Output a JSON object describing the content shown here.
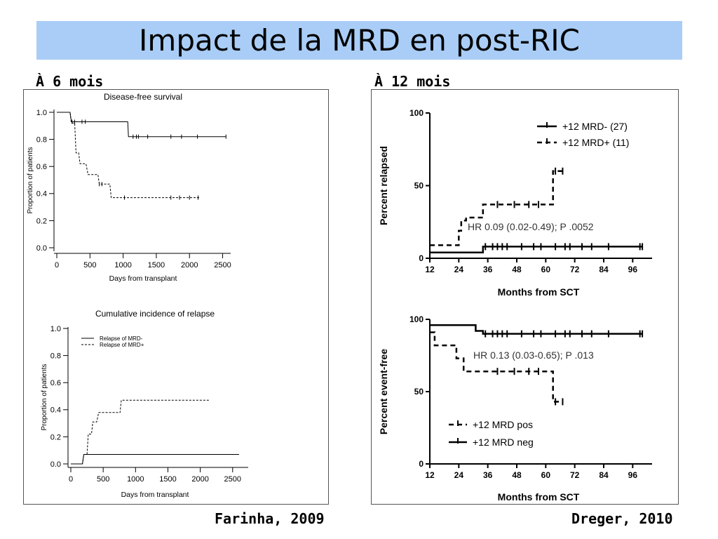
{
  "slide": {
    "title": "Impact de la MRD en post-RIC",
    "left_heading": "À 6 mois",
    "right_heading": "À 12 mois",
    "left_citation": "Farinha, 2009",
    "right_citation": "Dreger, 2010"
  },
  "chart_data": [
    {
      "type": "line",
      "step": true,
      "title": "Disease-free survival",
      "xlabel": "Days from transplant",
      "ylabel": "Proportion of patients",
      "xlim": [
        0,
        2600
      ],
      "ylim": [
        0,
        1.0
      ],
      "xticks": [
        "0",
        "500",
        "1000",
        "1500",
        "2000",
        "2500"
      ],
      "yticks": [
        "0.0",
        "0.2",
        "0.4",
        "0.6",
        "0.8",
        "1.0"
      ],
      "series": [
        {
          "style": "solid",
          "x": [
            0,
            200,
            220,
            1070,
            1080,
            2550
          ],
          "y": [
            1.0,
            1.0,
            0.93,
            0.93,
            0.82,
            0.82
          ],
          "censor_x": [
            230,
            270,
            380,
            430,
            1150,
            1200,
            1230,
            1370,
            1720,
            1880,
            2120,
            2550
          ]
        },
        {
          "style": "dashed",
          "x": [
            0,
            200,
            220,
            270,
            290,
            330,
            350,
            440,
            470,
            620,
            640,
            800,
            820,
            2150
          ],
          "y": [
            1.0,
            1.0,
            0.92,
            0.92,
            0.7,
            0.7,
            0.62,
            0.62,
            0.54,
            0.54,
            0.47,
            0.47,
            0.37,
            0.37
          ],
          "censor_x": [
            640,
            680,
            1020,
            1720,
            1850,
            2000,
            2130
          ]
        }
      ]
    },
    {
      "type": "line",
      "step": true,
      "title": "Cumulative incidence of relapse",
      "xlabel": "Days from transplant",
      "ylabel": "Proportion of patients",
      "xlim": [
        0,
        2600
      ],
      "ylim": [
        0,
        1.0
      ],
      "xticks": [
        "0",
        "500",
        "1000",
        "1500",
        "2000",
        "2500"
      ],
      "yticks": [
        "0.0",
        "0.2",
        "0.4",
        "0.6",
        "0.8",
        "1.0"
      ],
      "legend": [
        "Relapse of MRD-",
        "Relapse of MRD+"
      ],
      "legend_position": "top-left",
      "series": [
        {
          "name": "Relapse of MRD-",
          "style": "solid",
          "x": [
            0,
            180,
            200,
            2600
          ],
          "y": [
            0,
            0,
            0.07,
            0.07
          ]
        },
        {
          "name": "Relapse of MRD+",
          "style": "dashed",
          "x": [
            0,
            180,
            200,
            250,
            270,
            320,
            340,
            400,
            430,
            760,
            780,
            2150
          ],
          "y": [
            0,
            0,
            0.07,
            0.07,
            0.22,
            0.22,
            0.31,
            0.31,
            0.38,
            0.38,
            0.47,
            0.47
          ]
        }
      ]
    },
    {
      "type": "line",
      "step": true,
      "xlabel": "Months from SCT",
      "ylabel": "Percent relapsed",
      "xlim": [
        12,
        102
      ],
      "ylim": [
        0,
        100
      ],
      "xticks": [
        "12",
        "24",
        "36",
        "48",
        "60",
        "72",
        "84",
        "96"
      ],
      "yticks": [
        "0",
        "50",
        "100"
      ],
      "legend": [
        "+12 MRD- (27)",
        "+12 MRD+ (11)"
      ],
      "legend_position": "top-right",
      "annotation": "HR 0.09 (0.02-0.49); P  .0052",
      "series": [
        {
          "name": "+12 MRD- (27)",
          "style": "solid",
          "x": [
            12,
            34,
            34,
            100
          ],
          "y": [
            4,
            4,
            8,
            8
          ],
          "censor_x": [
            35,
            38,
            40,
            42,
            44,
            50,
            55,
            58,
            64,
            68,
            70,
            75,
            79,
            86,
            99,
            100
          ]
        },
        {
          "name": "+12 MRD+ (11)",
          "style": "dashed",
          "x": [
            12,
            24,
            24,
            25,
            25,
            27,
            27,
            34,
            34,
            63,
            63,
            67
          ],
          "y": [
            9,
            9,
            19,
            19,
            26,
            26,
            28,
            28,
            37,
            37,
            60,
            60
          ],
          "censor_x": [
            40,
            47,
            53,
            57,
            64,
            67
          ]
        }
      ]
    },
    {
      "type": "line",
      "step": true,
      "xlabel": "Months from SCT",
      "ylabel": "Percent event-free",
      "xlim": [
        12,
        102
      ],
      "ylim": [
        0,
        100
      ],
      "xticks": [
        "12",
        "24",
        "36",
        "48",
        "60",
        "72",
        "84",
        "96"
      ],
      "yticks": [
        "0",
        "50",
        "100"
      ],
      "legend": [
        "+12 MRD pos",
        "+12 MRD neg"
      ],
      "legend_position": "bottom-left",
      "annotation": "HR 0.13 (0.03-0.65); P  .013",
      "series": [
        {
          "name": "+12 MRD neg",
          "style": "solid",
          "x": [
            12,
            31,
            31,
            34,
            34,
            100
          ],
          "y": [
            96,
            96,
            92,
            92,
            90,
            90
          ],
          "censor_x": [
            35,
            38,
            40,
            42,
            44,
            50,
            55,
            58,
            64,
            68,
            70,
            75,
            79,
            86,
            99,
            100
          ]
        },
        {
          "name": "+12 MRD pos",
          "style": "dashed",
          "x": [
            12,
            14,
            14,
            23,
            23,
            26,
            26,
            63,
            63,
            67
          ],
          "y": [
            91,
            91,
            82,
            82,
            73,
            73,
            64,
            64,
            43,
            43
          ],
          "censor_x": [
            40,
            47,
            53,
            57,
            64,
            67
          ]
        }
      ]
    }
  ]
}
